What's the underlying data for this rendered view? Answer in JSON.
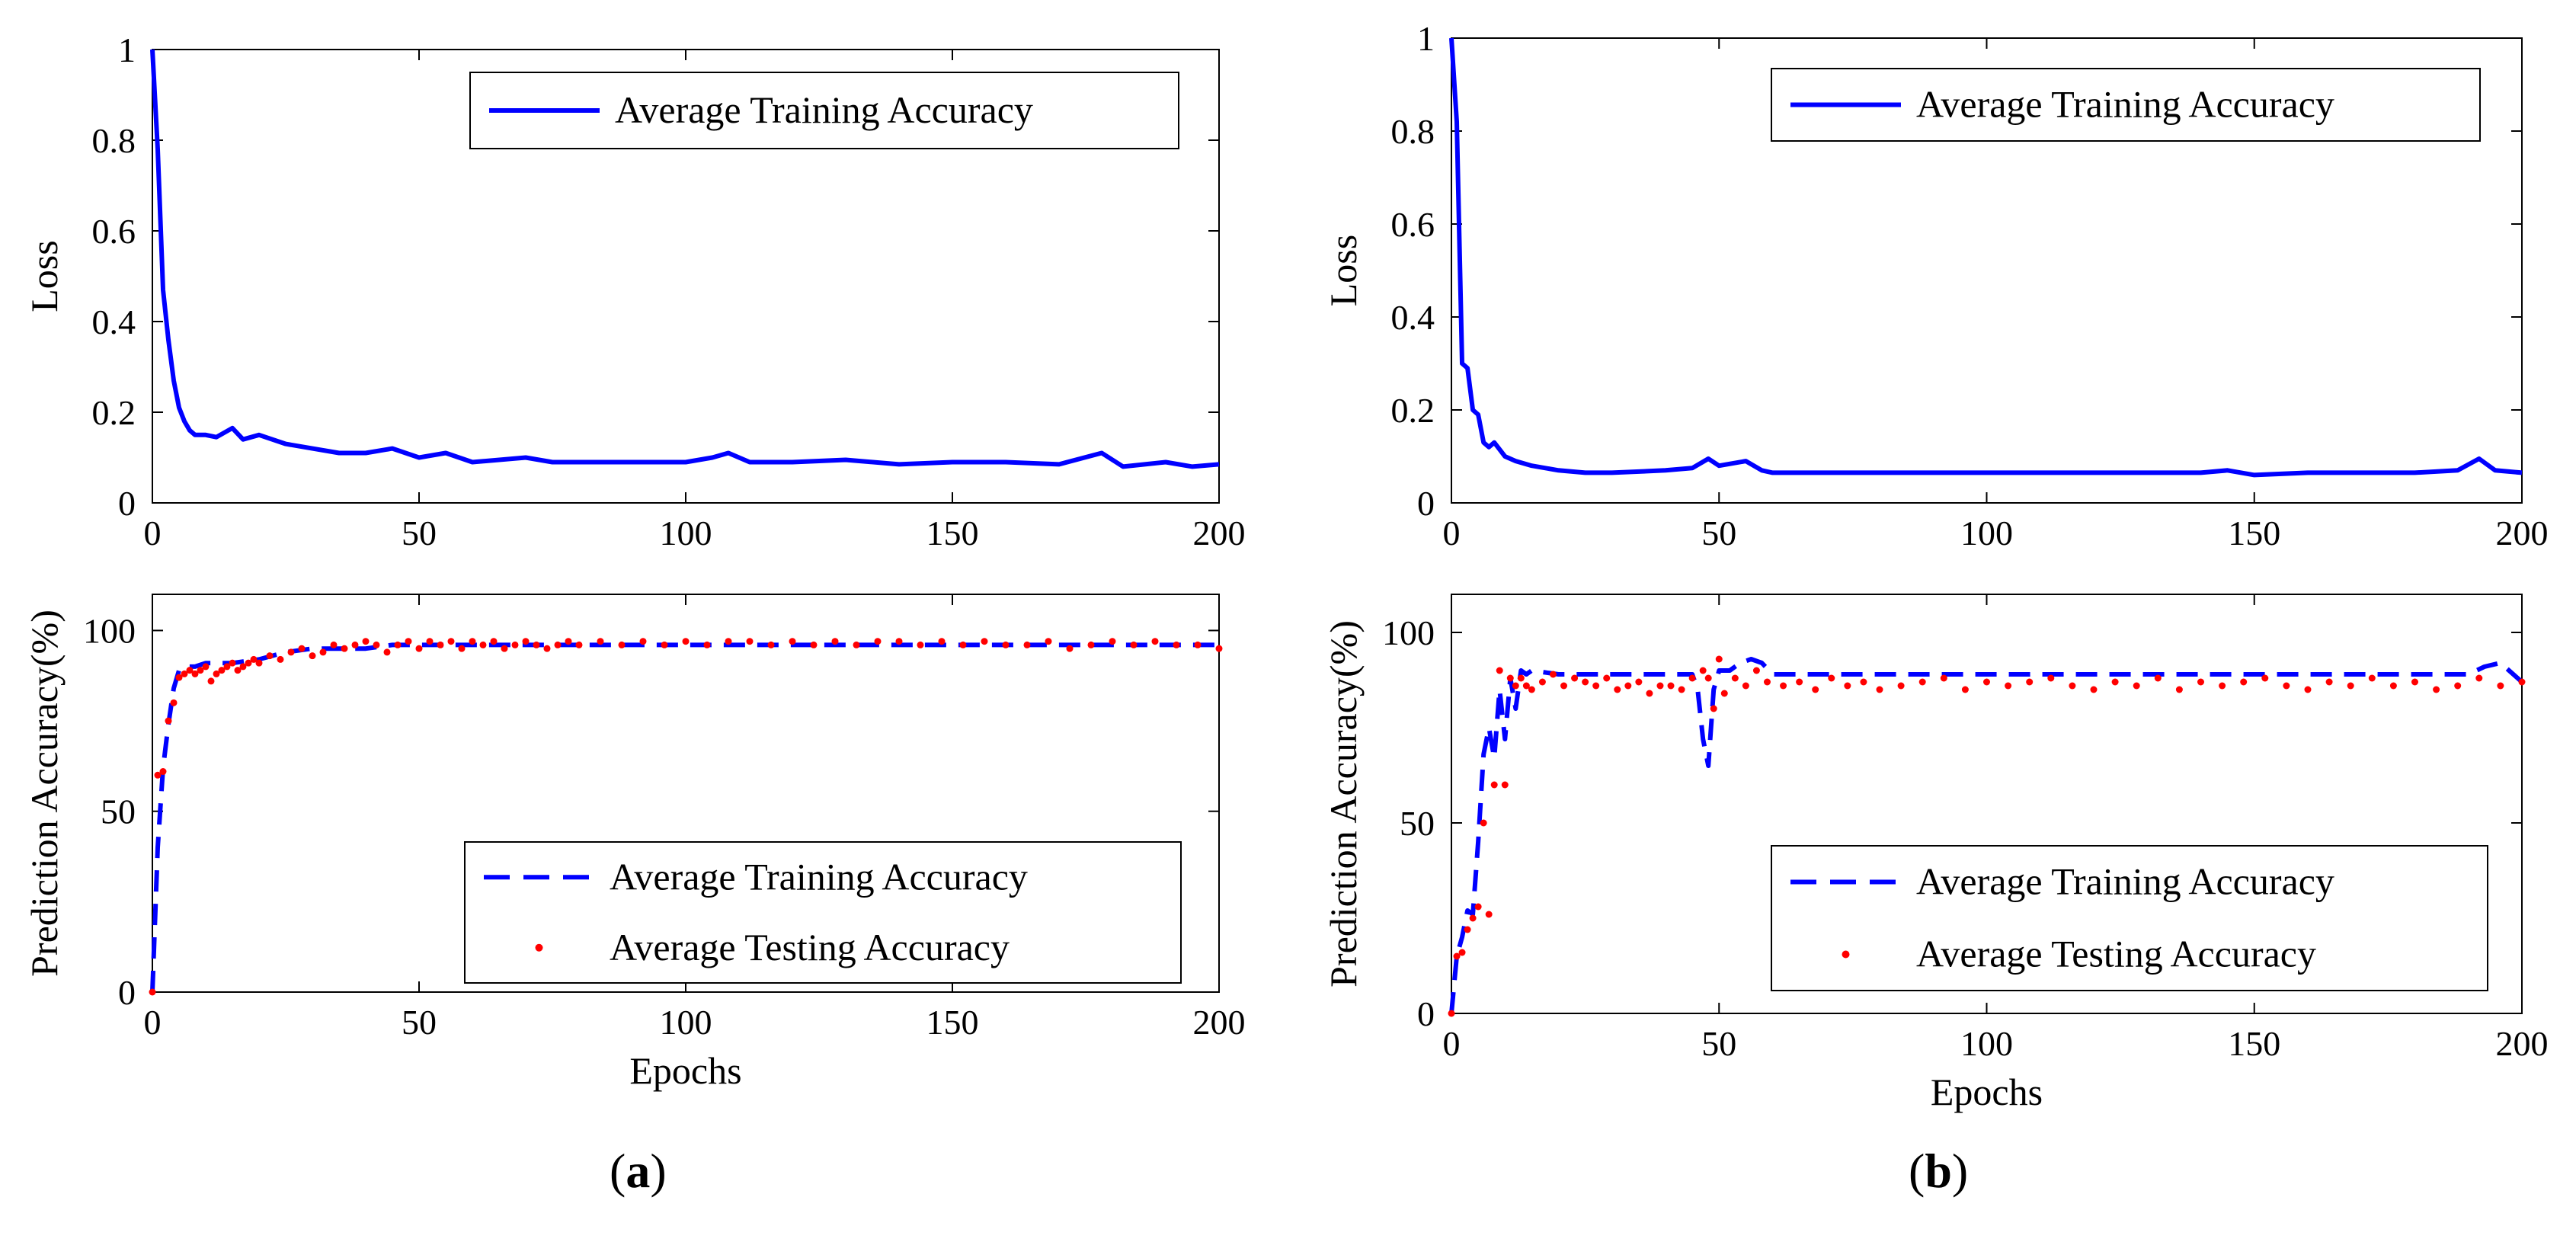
{
  "colors": {
    "train": "#0000ff",
    "test": "#ff0000",
    "axis": "#000000"
  },
  "panels": [
    {
      "caption_letter": "a",
      "top_legend": "Average Training Accuracy",
      "bottom_legend": [
        "Average Training Accuracy",
        "Average Testing Accuracy"
      ]
    },
    {
      "caption_letter": "b",
      "top_legend": "Average Training Accuracy",
      "bottom_legend": [
        "Average Training Accuracy",
        "Average Testing Accuracy"
      ]
    }
  ],
  "chart_data": [
    {
      "id": "a-loss",
      "type": "line",
      "ylabel": "Loss",
      "xlabel": "",
      "xlim": [
        0,
        200
      ],
      "ylim": [
        0,
        1
      ],
      "xticks": [
        0,
        50,
        100,
        150,
        200
      ],
      "yticks": [
        0,
        0.2,
        0.4,
        0.6,
        0.8,
        1
      ],
      "ytick_labels": [
        "0",
        "0.2",
        "0.4",
        "0.6",
        "0.8",
        "1"
      ],
      "legend": "top-right",
      "series": [
        {
          "name": "Average Training Accuracy",
          "style": "solid",
          "x": [
            0,
            1,
            2,
            3,
            4,
            5,
            6,
            7,
            8,
            10,
            12,
            15,
            17,
            20,
            25,
            30,
            35,
            40,
            45,
            50,
            55,
            60,
            70,
            75,
            80,
            90,
            100,
            105,
            108,
            112,
            120,
            130,
            140,
            150,
            160,
            170,
            178,
            182,
            190,
            195,
            200
          ],
          "y": [
            1.0,
            0.78,
            0.47,
            0.36,
            0.27,
            0.21,
            0.18,
            0.16,
            0.15,
            0.15,
            0.145,
            0.165,
            0.14,
            0.15,
            0.13,
            0.12,
            0.11,
            0.11,
            0.12,
            0.1,
            0.11,
            0.09,
            0.1,
            0.09,
            0.09,
            0.09,
            0.09,
            0.1,
            0.11,
            0.09,
            0.09,
            0.095,
            0.085,
            0.09,
            0.09,
            0.085,
            0.11,
            0.08,
            0.09,
            0.08,
            0.085
          ]
        }
      ]
    },
    {
      "id": "a-acc",
      "type": "line",
      "ylabel": "Prediction Accuracy(%)",
      "xlabel": "Epochs",
      "xlim": [
        0,
        200
      ],
      "ylim": [
        0,
        110
      ],
      "xticks": [
        0,
        50,
        100,
        150,
        200
      ],
      "yticks": [
        0,
        50,
        100
      ],
      "ytick_labels": [
        "0",
        "50",
        "100"
      ],
      "legend": "bottom-right",
      "series": [
        {
          "name": "Average Training Accuracy",
          "style": "dashed",
          "x": [
            0,
            1,
            2,
            3,
            4,
            5,
            6,
            8,
            10,
            15,
            20,
            25,
            30,
            35,
            40,
            45,
            50,
            55,
            60,
            70,
            80,
            90,
            100,
            110,
            120,
            130,
            140,
            150,
            160,
            170,
            180,
            190,
            200
          ],
          "y": [
            0,
            40,
            62,
            74,
            84,
            89,
            90,
            90,
            91,
            91,
            92,
            94,
            95,
            95,
            95,
            96,
            96,
            96,
            96,
            96,
            96,
            96,
            96,
            96,
            96,
            96,
            96,
            96,
            96,
            96,
            96,
            96,
            96
          ]
        },
        {
          "name": "Average Testing Accuracy",
          "style": "points",
          "x": [
            0,
            1,
            2,
            3,
            4,
            5,
            6,
            7,
            8,
            9,
            10,
            11,
            12,
            13,
            14,
            15,
            16,
            17,
            18,
            19,
            20,
            22,
            24,
            26,
            28,
            30,
            32,
            34,
            36,
            38,
            40,
            42,
            44,
            46,
            48,
            50,
            52,
            54,
            56,
            58,
            60,
            62,
            64,
            66,
            68,
            70,
            72,
            74,
            76,
            78,
            80,
            84,
            88,
            92,
            96,
            100,
            104,
            108,
            112,
            116,
            120,
            124,
            128,
            132,
            136,
            140,
            144,
            148,
            152,
            156,
            160,
            164,
            168,
            172,
            176,
            180,
            184,
            188,
            192,
            196,
            200
          ],
          "y": [
            0,
            60,
            61,
            75,
            80,
            87,
            88,
            89,
            88,
            89,
            90,
            86,
            88,
            89,
            90,
            91,
            89,
            90,
            91,
            92,
            91,
            93,
            92,
            94,
            95,
            93,
            94,
            96,
            95,
            96,
            97,
            96,
            94,
            96,
            97,
            95,
            97,
            96,
            97,
            95,
            97,
            96,
            97,
            95,
            96,
            97,
            96,
            95,
            96,
            97,
            96,
            97,
            96,
            97,
            96,
            97,
            96,
            97,
            97,
            96,
            97,
            96,
            97,
            96,
            97,
            97,
            96,
            97,
            96,
            97,
            96,
            96,
            97,
            95,
            96,
            97,
            96,
            97,
            96,
            96,
            95
          ]
        }
      ]
    },
    {
      "id": "b-loss",
      "type": "line",
      "ylabel": "Loss",
      "xlabel": "",
      "xlim": [
        0,
        200
      ],
      "ylim": [
        0,
        1
      ],
      "xticks": [
        0,
        50,
        100,
        150,
        200
      ],
      "yticks": [
        0,
        0.2,
        0.4,
        0.6,
        0.8,
        1
      ],
      "ytick_labels": [
        "0",
        "0.2",
        "0.4",
        "0.6",
        "0.8",
        "1"
      ],
      "legend": "top-right",
      "series": [
        {
          "name": "Average Training Accuracy",
          "style": "solid",
          "x": [
            0,
            1,
            2,
            3,
            4,
            5,
            6,
            7,
            8,
            10,
            12,
            15,
            20,
            25,
            30,
            40,
            45,
            48,
            50,
            55,
            58,
            60,
            70,
            80,
            90,
            100,
            110,
            120,
            130,
            140,
            145,
            150,
            160,
            170,
            180,
            188,
            192,
            195,
            200
          ],
          "y": [
            1.0,
            0.82,
            0.3,
            0.29,
            0.2,
            0.19,
            0.13,
            0.12,
            0.13,
            0.1,
            0.09,
            0.08,
            0.07,
            0.065,
            0.065,
            0.07,
            0.075,
            0.095,
            0.08,
            0.09,
            0.07,
            0.065,
            0.065,
            0.065,
            0.065,
            0.065,
            0.065,
            0.065,
            0.065,
            0.065,
            0.07,
            0.06,
            0.065,
            0.065,
            0.065,
            0.07,
            0.095,
            0.07,
            0.065
          ]
        }
      ]
    },
    {
      "id": "b-acc",
      "type": "line",
      "ylabel": "Prediction Accuracy(%)",
      "xlabel": "Epochs",
      "xlim": [
        0,
        200
      ],
      "ylim": [
        0,
        110
      ],
      "xticks": [
        0,
        50,
        100,
        150,
        200
      ],
      "yticks": [
        0,
        50,
        100
      ],
      "ytick_labels": [
        "0",
        "50",
        "100"
      ],
      "legend": "bottom-right",
      "series": [
        {
          "name": "Average Training Accuracy",
          "style": "dashed",
          "x": [
            0,
            1,
            2,
            3,
            4,
            5,
            6,
            7,
            8,
            9,
            10,
            11,
            12,
            13,
            14,
            15,
            20,
            30,
            40,
            45,
            46,
            47,
            48,
            49,
            50,
            52,
            54,
            56,
            58,
            60,
            70,
            80,
            90,
            100,
            110,
            120,
            130,
            140,
            150,
            160,
            170,
            180,
            190,
            193,
            196,
            200
          ],
          "y": [
            0,
            15,
            20,
            27,
            26,
            45,
            68,
            75,
            67,
            85,
            72,
            88,
            80,
            90,
            89,
            90,
            89,
            89,
            89,
            89,
            85,
            72,
            65,
            85,
            90,
            90,
            92,
            93,
            92,
            89,
            89,
            89,
            89,
            89,
            89,
            89,
            89,
            89,
            89,
            89,
            89,
            89,
            89,
            91,
            92,
            87
          ]
        },
        {
          "name": "Average Testing Accuracy",
          "style": "points",
          "x": [
            0,
            1,
            2,
            3,
            4,
            5,
            6,
            7,
            8,
            9,
            10,
            11,
            12,
            13,
            14,
            15,
            17,
            19,
            21,
            23,
            25,
            27,
            29,
            31,
            33,
            35,
            37,
            39,
            41,
            43,
            45,
            47,
            48,
            49,
            50,
            51,
            53,
            55,
            57,
            59,
            62,
            65,
            68,
            71,
            74,
            77,
            80,
            84,
            88,
            92,
            96,
            100,
            104,
            108,
            112,
            116,
            120,
            124,
            128,
            132,
            136,
            140,
            144,
            148,
            152,
            156,
            160,
            164,
            168,
            172,
            176,
            180,
            184,
            188,
            192,
            196,
            200
          ],
          "y": [
            0,
            15,
            16,
            22,
            25,
            28,
            50,
            26,
            60,
            90,
            60,
            88,
            86,
            88,
            86,
            85,
            87,
            89,
            86,
            88,
            87,
            86,
            88,
            85,
            86,
            87,
            84,
            86,
            86,
            85,
            88,
            90,
            88,
            80,
            93,
            84,
            88,
            86,
            90,
            87,
            86,
            87,
            85,
            88,
            86,
            87,
            85,
            86,
            87,
            88,
            85,
            87,
            86,
            87,
            88,
            86,
            85,
            87,
            86,
            88,
            85,
            87,
            86,
            87,
            88,
            86,
            85,
            87,
            86,
            88,
            86,
            87,
            85,
            86,
            88,
            86,
            87
          ]
        }
      ]
    }
  ]
}
